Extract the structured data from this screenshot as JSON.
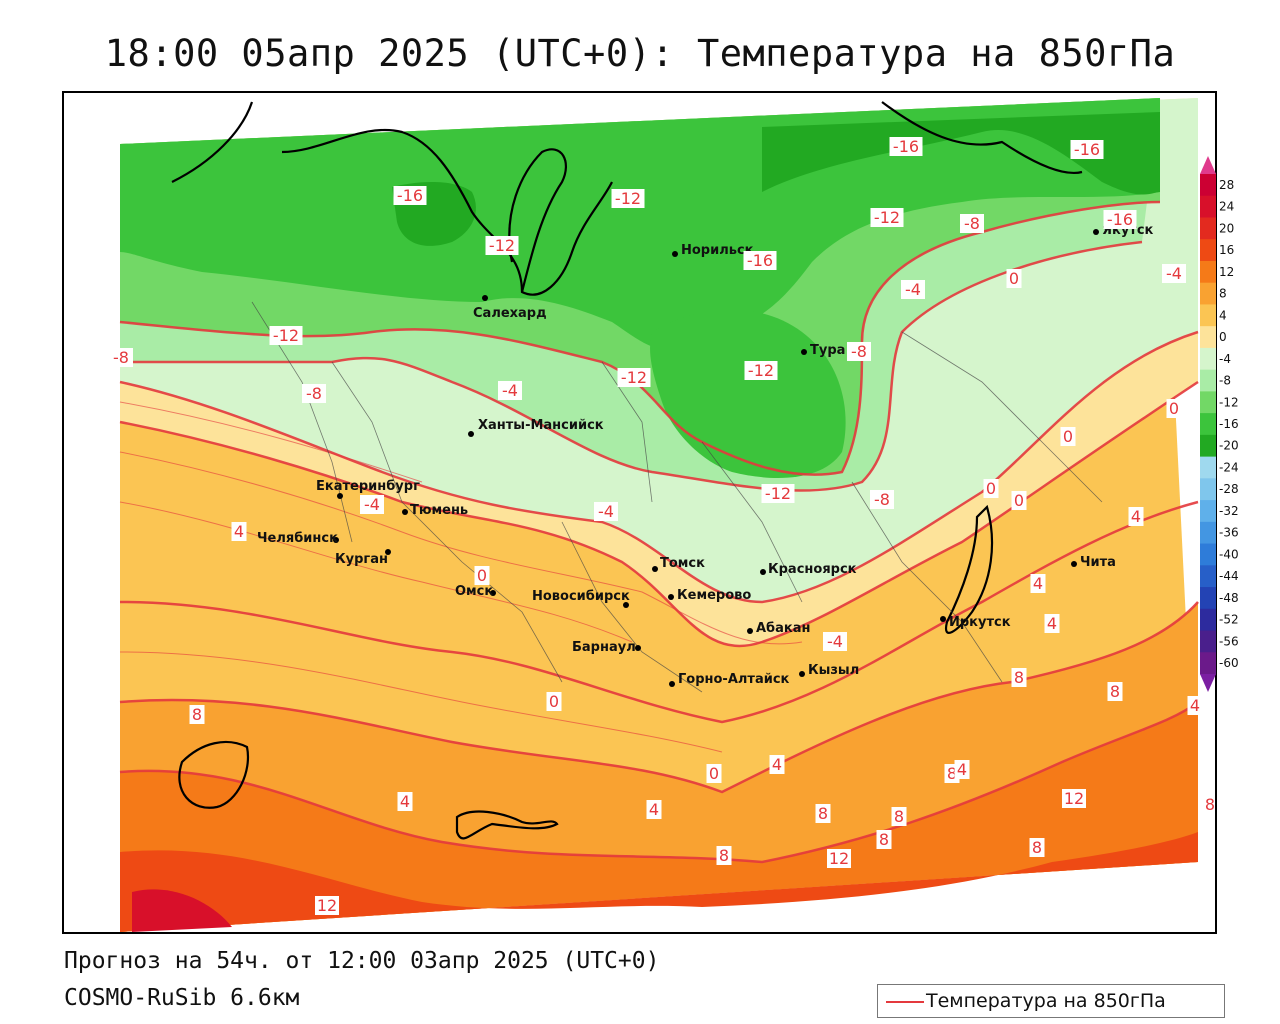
{
  "title": "18:00 05апр 2025 (UTC+0): Температура на 850гПа",
  "footer": {
    "forecast": "Прогноз на 54ч. от 12:00 03апр 2025 (UTC+0)",
    "model": "COSMO-RuSib 6.6км"
  },
  "legend": {
    "label": "Температура на 850гПа",
    "line_color": "#e4393d"
  },
  "colorbar": {
    "ticks": [
      "28",
      "24",
      "20",
      "16",
      "12",
      "8",
      "4",
      "0",
      "-4",
      "-8",
      "-12",
      "-16",
      "-20",
      "-24",
      "-28",
      "-32",
      "-36",
      "-40",
      "-44",
      "-48",
      "-52",
      "-56",
      "-60"
    ],
    "colors": [
      "#cc0033",
      "#d8102a",
      "#e32a1f",
      "#ee4a14",
      "#f57a18",
      "#f9a231",
      "#fbc553",
      "#fde39a",
      "#d5f5cc",
      "#a9eca6",
      "#72d866",
      "#3cc43c",
      "#22a922",
      "#9fd9ee",
      "#7fc6ec",
      "#5fb0ea",
      "#4396e2",
      "#2e7cd9",
      "#275fc8",
      "#2343b4",
      "#2d2b9e",
      "#4a1f8c",
      "#6b1a8a"
    ]
  },
  "cities": [
    {
      "name": "Норильск"
    },
    {
      "name": "Якутск"
    },
    {
      "name": "Салехард"
    },
    {
      "name": "Тура"
    },
    {
      "name": "Ханты-Мансийск"
    },
    {
      "name": "Екатеринбург"
    },
    {
      "name": "Тюмень"
    },
    {
      "name": "Челябинск"
    },
    {
      "name": "Курган"
    },
    {
      "name": "Омск"
    },
    {
      "name": "Новосибирск"
    },
    {
      "name": "Томск"
    },
    {
      "name": "Кемерово"
    },
    {
      "name": "Красноярск"
    },
    {
      "name": "Абакан"
    },
    {
      "name": "Барнаул"
    },
    {
      "name": "Горно-Алтайск"
    },
    {
      "name": "Кызыл"
    },
    {
      "name": "Иркутск"
    },
    {
      "name": "Чита"
    }
  ],
  "isotherm_labels": [
    "-16",
    "-16",
    "-16",
    "-16",
    "-12",
    "-12",
    "-8",
    "-12",
    "-8",
    "-16",
    "-12",
    "-4",
    "-4",
    "0",
    "-12",
    "-8",
    "-8",
    "-12",
    "-12",
    "-8",
    "-4",
    "-4",
    "-4",
    "0",
    "0",
    "0",
    "4",
    "0",
    "4",
    "0",
    "-4",
    "4",
    "8",
    "0",
    "8",
    "4",
    "4",
    "8",
    "4",
    "0",
    "4",
    "8",
    "8",
    "8",
    "4",
    "12",
    "8",
    "4",
    "12",
    "8",
    "8",
    "12",
    "8"
  ]
}
